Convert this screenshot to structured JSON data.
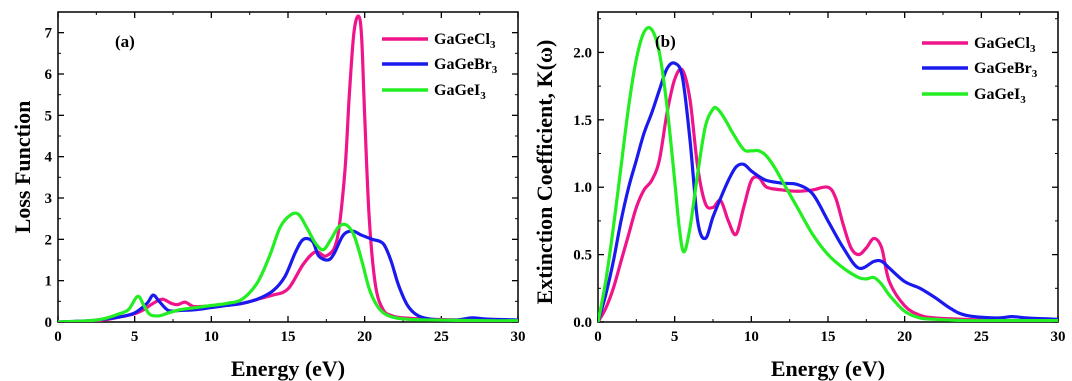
{
  "colors": {
    "GaGeCl3": "#f0148a",
    "GaGeBr3": "#1a1aee",
    "GaGeI3": "#22ee22",
    "axis": "#000000"
  },
  "chart_data": [
    {
      "type": "line",
      "panel_label": "(a)",
      "xlabel": "Energy (eV)",
      "ylabel": "Loss Function",
      "xlim": [
        0,
        30
      ],
      "ylim": [
        0,
        7.5
      ],
      "xticks": [
        0,
        5,
        10,
        15,
        20,
        25,
        30
      ],
      "yticks": [
        0,
        1,
        2,
        3,
        4,
        5,
        6,
        7
      ],
      "legend": {
        "placement": "top-right"
      },
      "series": [
        {
          "name": "GaGeCl3",
          "name_main": "GaGeCl",
          "name_sub": "3",
          "color_key": "GaGeCl3",
          "x": [
            0,
            2,
            3,
            4,
            5,
            5.6,
            6.2,
            6.8,
            7.4,
            7.8,
            8.3,
            8.8,
            9.5,
            10.5,
            12,
            13,
            14,
            15,
            16,
            16.8,
            17.5,
            18.2,
            18.7,
            19.0,
            19.3,
            19.6,
            19.8,
            20.0,
            20.3,
            20.7,
            21.2,
            21.8,
            22.5,
            24,
            26,
            28,
            30
          ],
          "y": [
            0,
            0.02,
            0.05,
            0.12,
            0.2,
            0.3,
            0.45,
            0.55,
            0.45,
            0.42,
            0.48,
            0.38,
            0.38,
            0.4,
            0.45,
            0.55,
            0.65,
            0.8,
            1.4,
            1.7,
            1.6,
            2.0,
            3.6,
            5.5,
            7.0,
            7.4,
            6.9,
            5.0,
            2.5,
            0.9,
            0.3,
            0.15,
            0.1,
            0.07,
            0.05,
            0.04,
            0.04
          ]
        },
        {
          "name": "GaGeBr3",
          "name_main": "GaGeBr",
          "name_sub": "3",
          "color_key": "GaGeBr3",
          "x": [
            0,
            2,
            3,
            4,
            5,
            5.8,
            6.2,
            6.6,
            7.2,
            8,
            9,
            10,
            11,
            12,
            13,
            14,
            14.8,
            15.5,
            16.0,
            16.6,
            17.0,
            17.6,
            18.0,
            18.6,
            19.2,
            19.8,
            20.5,
            21.2,
            21.7,
            22.2,
            22.8,
            23.5,
            24.5,
            26,
            27,
            28,
            30
          ],
          "y": [
            0,
            0.03,
            0.07,
            0.12,
            0.22,
            0.45,
            0.65,
            0.5,
            0.28,
            0.28,
            0.3,
            0.35,
            0.4,
            0.45,
            0.55,
            0.75,
            1.1,
            1.7,
            2.0,
            1.95,
            1.6,
            1.5,
            1.65,
            2.1,
            2.2,
            2.1,
            2.0,
            1.9,
            1.5,
            0.9,
            0.4,
            0.15,
            0.06,
            0.05,
            0.1,
            0.07,
            0.05
          ]
        },
        {
          "name": "GaGeI3",
          "name_main": "GaGeI",
          "name_sub": "3",
          "color_key": "GaGeI3",
          "x": [
            0,
            2,
            3,
            4,
            4.6,
            5.2,
            5.6,
            6.0,
            6.6,
            7.2,
            8,
            9,
            10,
            11,
            12,
            13,
            13.8,
            14.5,
            15.2,
            15.7,
            16.2,
            16.8,
            17.3,
            17.8,
            18.3,
            18.8,
            19.3,
            19.8,
            20.3,
            20.8,
            21.3,
            22,
            23,
            24,
            26,
            28,
            30
          ],
          "y": [
            0,
            0.03,
            0.08,
            0.2,
            0.3,
            0.62,
            0.4,
            0.18,
            0.15,
            0.22,
            0.3,
            0.35,
            0.4,
            0.45,
            0.55,
            0.95,
            1.6,
            2.3,
            2.6,
            2.6,
            2.3,
            1.9,
            1.75,
            2.0,
            2.3,
            2.35,
            2.1,
            1.5,
            0.8,
            0.4,
            0.2,
            0.1,
            0.06,
            0.05,
            0.04,
            0.03,
            0.03
          ]
        }
      ]
    },
    {
      "type": "line",
      "panel_label": "(b)",
      "xlabel": "Energy (eV)",
      "ylabel": "Extinction Coefficient, K(ω)",
      "xlim": [
        0,
        30
      ],
      "ylim": [
        0,
        2.3
      ],
      "xticks": [
        0,
        5,
        10,
        15,
        20,
        25,
        30
      ],
      "yticks": [
        0.0,
        0.5,
        1.0,
        1.5,
        2.0
      ],
      "ytick_labels": [
        "0.0",
        "0.5",
        "1.0",
        "1.5",
        "2.0"
      ],
      "legend": {
        "placement": "top-right"
      },
      "series": [
        {
          "name": "GaGeCl3",
          "name_main": "GaGeCl",
          "name_sub": "3",
          "color_key": "GaGeCl3",
          "x": [
            0,
            0.5,
            1,
            1.5,
            2,
            2.5,
            3,
            3.5,
            4,
            4.5,
            5,
            5.5,
            6,
            6.5,
            7,
            7.5,
            8,
            8.5,
            9,
            9.5,
            10,
            10.5,
            11,
            12,
            13,
            14,
            15,
            15.5,
            16,
            16.5,
            17,
            17.5,
            18,
            18.5,
            19,
            20,
            21,
            22,
            24,
            26,
            28,
            30
          ],
          "y": [
            0,
            0.1,
            0.25,
            0.45,
            0.65,
            0.85,
            0.98,
            1.05,
            1.2,
            1.55,
            1.8,
            1.87,
            1.65,
            1.15,
            0.88,
            0.85,
            0.9,
            0.75,
            0.65,
            0.85,
            1.05,
            1.07,
            1.0,
            0.98,
            0.97,
            0.98,
            1.0,
            0.92,
            0.72,
            0.55,
            0.5,
            0.55,
            0.62,
            0.55,
            0.3,
            0.12,
            0.05,
            0.03,
            0.02,
            0.01,
            0.01,
            0.01
          ]
        },
        {
          "name": "GaGeBr3",
          "name_main": "GaGeBr",
          "name_sub": "3",
          "color_key": "GaGeBr3",
          "x": [
            0,
            0.5,
            1,
            1.5,
            2,
            2.5,
            3,
            3.5,
            4,
            4.5,
            5,
            5.5,
            6,
            6.5,
            7,
            7.5,
            8,
            8.5,
            9,
            9.5,
            10,
            10.5,
            11,
            12,
            13,
            14,
            15,
            16,
            17,
            18,
            18.5,
            19,
            20,
            21,
            22,
            23,
            24,
            26,
            27,
            28,
            30
          ],
          "y": [
            0,
            0.2,
            0.45,
            0.75,
            1.0,
            1.2,
            1.4,
            1.55,
            1.72,
            1.88,
            1.92,
            1.82,
            1.35,
            0.75,
            0.62,
            0.78,
            0.92,
            1.05,
            1.15,
            1.17,
            1.12,
            1.08,
            1.05,
            1.03,
            1.02,
            0.95,
            0.75,
            0.55,
            0.4,
            0.45,
            0.45,
            0.4,
            0.3,
            0.25,
            0.18,
            0.1,
            0.05,
            0.03,
            0.04,
            0.03,
            0.02
          ]
        },
        {
          "name": "GaGeI3",
          "name_main": "GaGeI",
          "name_sub": "3",
          "color_key": "GaGeI3",
          "x": [
            0,
            0.5,
            1,
            1.5,
            2,
            2.5,
            3,
            3.5,
            4,
            4.5,
            5,
            5.3,
            5.6,
            6,
            6.5,
            7,
            7.5,
            7.8,
            8.2,
            8.8,
            9.5,
            10,
            10.5,
            11,
            11.5,
            12,
            13,
            14,
            15,
            16,
            17,
            17.5,
            18,
            18.5,
            19,
            20,
            21,
            22,
            24,
            26,
            28,
            30
          ],
          "y": [
            0,
            0.3,
            0.7,
            1.15,
            1.6,
            1.95,
            2.15,
            2.17,
            2.0,
            1.6,
            1.05,
            0.7,
            0.52,
            0.7,
            1.1,
            1.45,
            1.58,
            1.58,
            1.52,
            1.4,
            1.28,
            1.27,
            1.27,
            1.23,
            1.15,
            1.05,
            0.85,
            0.65,
            0.5,
            0.4,
            0.33,
            0.32,
            0.33,
            0.28,
            0.2,
            0.08,
            0.03,
            0.02,
            0.01,
            0.01,
            0.01,
            0.01
          ]
        }
      ]
    }
  ]
}
